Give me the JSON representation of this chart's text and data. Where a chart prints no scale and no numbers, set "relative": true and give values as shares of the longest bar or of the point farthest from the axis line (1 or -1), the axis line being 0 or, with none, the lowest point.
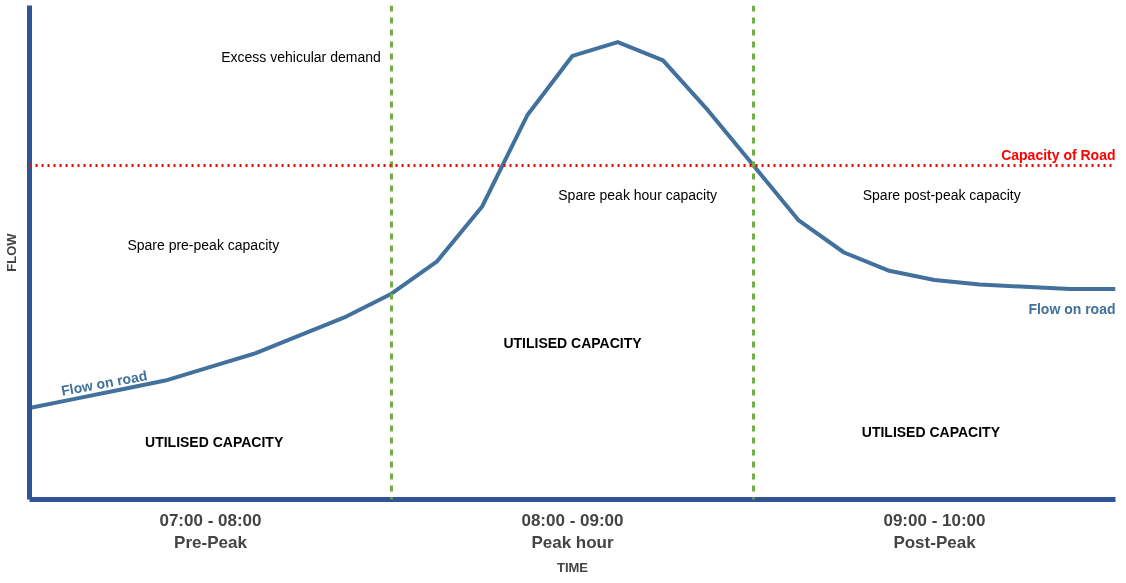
{
  "chart_data": {
    "type": "line",
    "relative": true,
    "xlabel": "TIME",
    "ylabel": "FLOW",
    "categories": [
      null,
      null,
      null,
      null,
      "07:00 - 08:00\nPre-Peak",
      null,
      null,
      null,
      null,
      null,
      null,
      null,
      "08:00 - 09:00\nPeak hour",
      null,
      null,
      null,
      null,
      null,
      null,
      null,
      "09:00 - 10:00\nPost-Peak",
      null,
      null,
      null,
      null
    ],
    "series": [
      {
        "name": "Flow on road",
        "color": "#41719c",
        "values": [
          0.2,
          0.22,
          0.24,
          0.26,
          0.29,
          0.32,
          0.36,
          0.4,
          0.45,
          0.52,
          0.64,
          0.84,
          0.97,
          1.0,
          0.96,
          0.85,
          0.73,
          0.61,
          0.54,
          0.5,
          0.48,
          0.47,
          0.465,
          0.46,
          0.46
        ]
      }
    ],
    "ref_lines": [
      {
        "axis": "y",
        "value": 0.73,
        "label": "Capacity of Road",
        "color": "#ff0000",
        "line_style": "dotted"
      }
    ],
    "annotations": [
      "Excess vehicular demand",
      "Spare peak hour capacity",
      "Spare pre-peak capacity",
      "Spare post-peak capacity",
      "UTILISED CAPACITY",
      "UTILISED CAPACITY",
      "UTILISED CAPACITY",
      "Flow on road"
    ]
  }
}
